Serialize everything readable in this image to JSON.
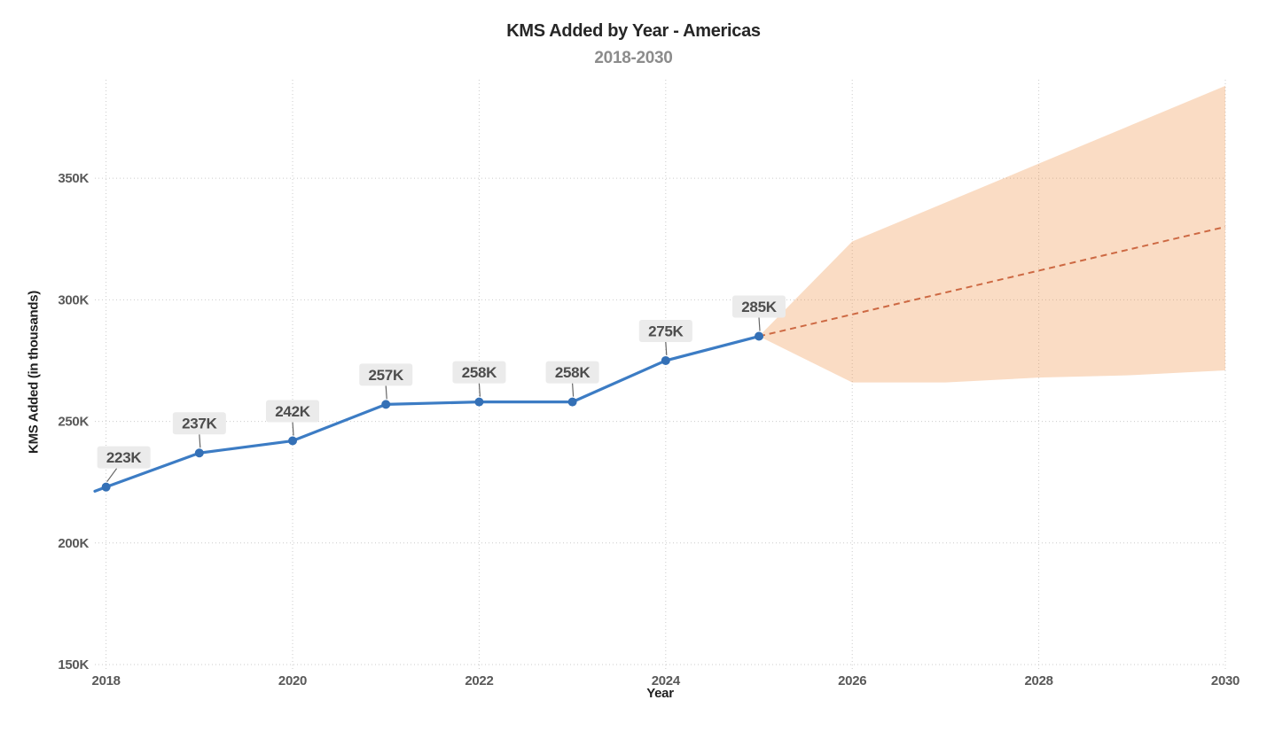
{
  "header": {
    "title": "KMS Added by Year - Americas",
    "subtitle": "2018-2030"
  },
  "chart_data": {
    "type": "line",
    "title": "KMS Added by Year - Americas",
    "subtitle": "2018-2030",
    "xlabel": "Year",
    "ylabel": "KMS Added (in thousands)",
    "xlim": [
      2017.88,
      2030
    ],
    "ylim": [
      150,
      390.5
    ],
    "grid": "dotted",
    "legend": "none",
    "x_ticks": [
      {
        "value": 2018,
        "label": "2018"
      },
      {
        "value": 2020,
        "label": "2020"
      },
      {
        "value": 2022,
        "label": "2022"
      },
      {
        "value": 2024,
        "label": "2024"
      },
      {
        "value": 2026,
        "label": "2026"
      },
      {
        "value": 2028,
        "label": "2028"
      },
      {
        "value": 2030,
        "label": "2030"
      }
    ],
    "y_ticks": [
      {
        "value": 150,
        "label": "150K"
      },
      {
        "value": 200,
        "label": "200K"
      },
      {
        "value": 250,
        "label": "250K"
      },
      {
        "value": 300,
        "label": "300K"
      },
      {
        "value": 350,
        "label": "350K"
      }
    ],
    "series": [
      {
        "name": "confidence-band",
        "type": "band",
        "color": "#f08a3c",
        "opacity": 0.3,
        "x": [
          2025,
          2026,
          2027,
          2028,
          2029,
          2030
        ],
        "upper": [
          285,
          324,
          340,
          356,
          372,
          388
        ],
        "lower": [
          285,
          266,
          266,
          268,
          269,
          271
        ]
      },
      {
        "name": "forecast",
        "type": "dashed-line",
        "color": "#cd6943",
        "x": [
          2025,
          2026,
          2027,
          2028,
          2029,
          2030
        ],
        "y": [
          285,
          294,
          303,
          312,
          321,
          330
        ]
      },
      {
        "name": "historical",
        "type": "line-markers",
        "color": "#3c7cc4",
        "marker_color": "#3470b6",
        "lead_in": {
          "x": 2017.88,
          "y": 221.3
        },
        "x": [
          2018,
          2019,
          2020,
          2021,
          2022,
          2023,
          2024,
          2025
        ],
        "y": [
          223,
          237,
          242,
          257,
          258,
          258,
          275,
          285
        ],
        "labels": [
          "223K",
          "237K",
          "242K",
          "257K",
          "258K",
          "258K",
          "275K",
          "285K"
        ],
        "label_dx": [
          20,
          0,
          0,
          0,
          0,
          0,
          0,
          0
        ],
        "label_box_color": "#ebebeb",
        "leader_color": "#666666"
      }
    ],
    "grid_color": "#cbcbcb"
  }
}
